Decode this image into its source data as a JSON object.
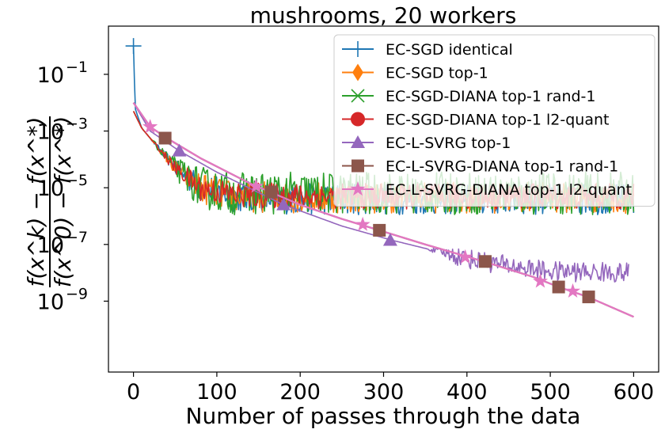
{
  "chart_data": {
    "type": "line",
    "title": "mushrooms, 20 workers",
    "xlabel": "Number of passes through the data",
    "ylabel_numerator": "f(x^k) − f(x^*)",
    "ylabel_denominator": "f(x^0) − f(x^*)",
    "y_scale": "log",
    "xlim": [
      -30,
      630
    ],
    "ylim_log10": [
      -11.5,
      0.7
    ],
    "x_ticks": [
      0,
      100,
      200,
      300,
      400,
      500,
      600
    ],
    "x_tick_labels": [
      "0",
      "100",
      "200",
      "300",
      "400",
      "500",
      "600"
    ],
    "y_ticks_log10": [
      -1,
      -3,
      -5,
      -7,
      -9
    ],
    "y_tick_labels": [
      "10",
      "10",
      "10",
      "10",
      "10"
    ],
    "y_tick_exponents": [
      "−1",
      "−3",
      "−5",
      "−7",
      "−9"
    ],
    "legend_position": "upper right",
    "grid": false,
    "series": [
      {
        "name": "EC-SGD identical",
        "color": "#1f77b4",
        "marker": "plus",
        "kind": "noisy_plateau",
        "plateau_log10": -5.4,
        "noise_log10": 0.55,
        "points": [
          [
            0,
            0.0
          ],
          [
            2,
            -2.2
          ],
          [
            10,
            -2.9
          ],
          [
            30,
            -3.6
          ],
          [
            50,
            -4.3
          ],
          [
            80,
            -5.0
          ],
          [
            120,
            -5.3
          ],
          [
            200,
            -5.4
          ],
          [
            600,
            -5.4
          ]
        ],
        "markers": [
          [
            0,
            0.0
          ]
        ]
      },
      {
        "name": "EC-SGD top-1",
        "color": "#ff7f0e",
        "marker": "diamond",
        "kind": "noisy_plateau",
        "plateau_log10": -5.35,
        "noise_log10": 0.55,
        "points": [
          [
            0,
            -2.3
          ],
          [
            10,
            -2.9
          ],
          [
            30,
            -3.6
          ],
          [
            50,
            -4.3
          ],
          [
            80,
            -5.0
          ],
          [
            120,
            -5.3
          ],
          [
            200,
            -5.35
          ],
          [
            600,
            -5.35
          ]
        ],
        "markers": []
      },
      {
        "name": "EC-SGD-DIANA top-1 rand-1",
        "color": "#2ca02c",
        "marker": "x",
        "kind": "noisy_plateau",
        "plateau_log10": -5.2,
        "noise_log10": 0.75,
        "points": [
          [
            0,
            -2.3
          ],
          [
            10,
            -2.9
          ],
          [
            30,
            -3.6
          ],
          [
            50,
            -4.3
          ],
          [
            80,
            -5.0
          ],
          [
            120,
            -5.2
          ],
          [
            200,
            -5.2
          ],
          [
            600,
            -5.2
          ]
        ],
        "markers": []
      },
      {
        "name": "EC-SGD-DIANA top-1 l2-quant",
        "color": "#d62728",
        "marker": "circle",
        "kind": "noisy_plateau",
        "plateau_log10": -5.3,
        "noise_log10": 0.45,
        "points": [
          [
            0,
            -2.3
          ],
          [
            10,
            -2.9
          ],
          [
            30,
            -3.6
          ],
          [
            50,
            -4.3
          ],
          [
            80,
            -5.0
          ],
          [
            120,
            -5.25
          ],
          [
            200,
            -5.3
          ],
          [
            600,
            -5.3
          ]
        ],
        "markers": []
      },
      {
        "name": "EC-L-SVRG top-1",
        "color": "#9467bd",
        "marker": "triangle",
        "kind": "noisy_tail",
        "noise_start": 350,
        "noise_log10": 0.35,
        "points": [
          [
            0,
            -2.0
          ],
          [
            20,
            -3.0
          ],
          [
            55,
            -3.7
          ],
          [
            100,
            -4.45
          ],
          [
            180,
            -5.6
          ],
          [
            250,
            -6.35
          ],
          [
            310,
            -6.85
          ],
          [
            400,
            -7.5
          ],
          [
            450,
            -7.75
          ],
          [
            500,
            -7.95
          ],
          [
            595,
            -8.0
          ]
        ],
        "markers": [
          [
            55,
            -3.7
          ],
          [
            180,
            -5.6
          ],
          [
            308,
            -6.85
          ]
        ]
      },
      {
        "name": "EC-L-SVRG-DIANA top-1 rand-1",
        "color": "#8c564b",
        "marker": "square",
        "kind": "smooth",
        "points": [
          [
            0,
            -2.0
          ],
          [
            20,
            -2.85
          ],
          [
            40,
            -3.25
          ],
          [
            80,
            -3.95
          ],
          [
            140,
            -4.85
          ],
          [
            200,
            -5.6
          ],
          [
            250,
            -6.1
          ],
          [
            295,
            -6.5
          ],
          [
            350,
            -7.0
          ],
          [
            420,
            -7.6
          ],
          [
            480,
            -8.15
          ],
          [
            510,
            -8.5
          ],
          [
            545,
            -8.85
          ],
          [
            600,
            -9.55
          ]
        ],
        "markers": [
          [
            38,
            -3.25
          ],
          [
            165,
            -5.15
          ],
          [
            295,
            -6.5
          ],
          [
            422,
            -7.6
          ],
          [
            510,
            -8.5
          ],
          [
            546,
            -8.85
          ]
        ]
      },
      {
        "name": "EC-L-SVRG-DIANA top-1 l2-quant",
        "color": "#e377c2",
        "marker": "star",
        "kind": "smooth",
        "points": [
          [
            0,
            -2.0
          ],
          [
            20,
            -2.85
          ],
          [
            40,
            -3.25
          ],
          [
            80,
            -3.95
          ],
          [
            140,
            -4.85
          ],
          [
            200,
            -5.6
          ],
          [
            250,
            -6.1
          ],
          [
            295,
            -6.5
          ],
          [
            350,
            -7.0
          ],
          [
            420,
            -7.6
          ],
          [
            480,
            -8.15
          ],
          [
            510,
            -8.5
          ],
          [
            545,
            -8.85
          ],
          [
            600,
            -9.55
          ]
        ],
        "markers": [
          [
            20,
            -2.85
          ],
          [
            147,
            -4.95
          ],
          [
            275,
            -6.3
          ],
          [
            398,
            -7.45
          ],
          [
            488,
            -8.3
          ],
          [
            527,
            -8.65
          ]
        ]
      }
    ]
  }
}
